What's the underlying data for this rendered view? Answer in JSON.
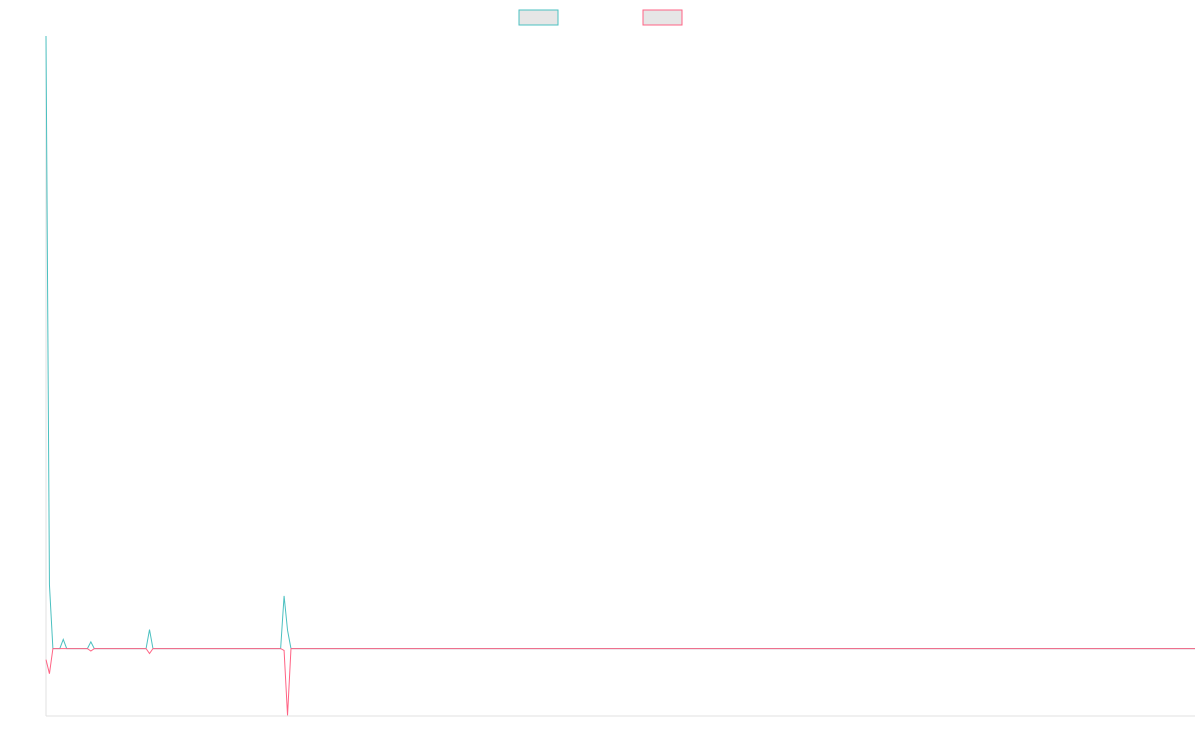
{
  "chart_data": {
    "type": "line",
    "x": [
      0,
      1,
      2,
      4,
      5,
      6,
      12,
      13,
      14,
      29,
      30,
      31,
      68,
      69,
      70,
      71,
      333
    ],
    "xlim": [
      0,
      333
    ],
    "ylim": [
      -11,
      100
    ],
    "legend": "top",
    "series": [
      {
        "color": "#4bc0c0",
        "values": [
          100,
          10.4,
          0,
          0,
          1.5,
          0,
          0,
          1.1,
          0,
          0,
          3.1,
          0,
          0,
          8.6,
          3,
          0,
          0
        ]
      },
      {
        "color": "#ff6384",
        "values": [
          -1.8,
          -4.1,
          0,
          0,
          0,
          0,
          0,
          -0.4,
          0,
          0,
          -0.8,
          0,
          0,
          -0.3,
          -10.9,
          0,
          0
        ]
      }
    ]
  }
}
